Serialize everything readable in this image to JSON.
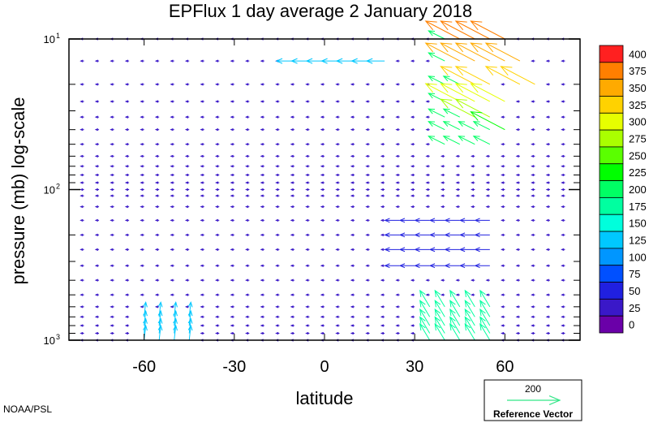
{
  "chart_data": {
    "type": "vector-field",
    "title": "EPFlux  1 day average  2 January   2018",
    "xlabel": "latitude",
    "ylabel": "pressure (mb)  log-scale",
    "xlim": [
      -85,
      85
    ],
    "ylim_mb": [
      1000,
      10
    ],
    "y_scale": "log",
    "x_ticks": [
      -60,
      -30,
      0,
      30,
      60
    ],
    "x_tick_labels": [
      "-60",
      "-30",
      "0",
      "30",
      "60"
    ],
    "y_ticks_mb": [
      10,
      100,
      1000
    ],
    "y_tick_labels": [
      {
        "base": "10",
        "exp": "1"
      },
      {
        "base": "10",
        "exp": "2"
      },
      {
        "base": "10",
        "exp": "3"
      }
    ],
    "colorbar": {
      "levels": [
        400,
        375,
        350,
        325,
        300,
        275,
        250,
        225,
        200,
        175,
        150,
        125,
        100,
        75,
        50,
        25,
        0
      ],
      "colors": [
        "#ff2020",
        "#ff7f00",
        "#ffaa00",
        "#ffd200",
        "#e6ff00",
        "#aaff00",
        "#5aff00",
        "#00ff00",
        "#00ff64",
        "#00ffa0",
        "#00ffdc",
        "#00c8ff",
        "#0096ff",
        "#0050ff",
        "#2020e0",
        "#3a18c8",
        "#6a00a8"
      ]
    },
    "reference_vector": {
      "magnitude": "200",
      "label": "Reference Vector",
      "color": "#33e688"
    },
    "credit": "NOAA/PSL",
    "field_description": "Small blue vectors over most of the domain; strong red/orange/yellow upward-equatorward flux at 40-75N between 10 and 40 mb; green/cyan vectors near 30-50N in lower levels and near 60-45S."
  }
}
